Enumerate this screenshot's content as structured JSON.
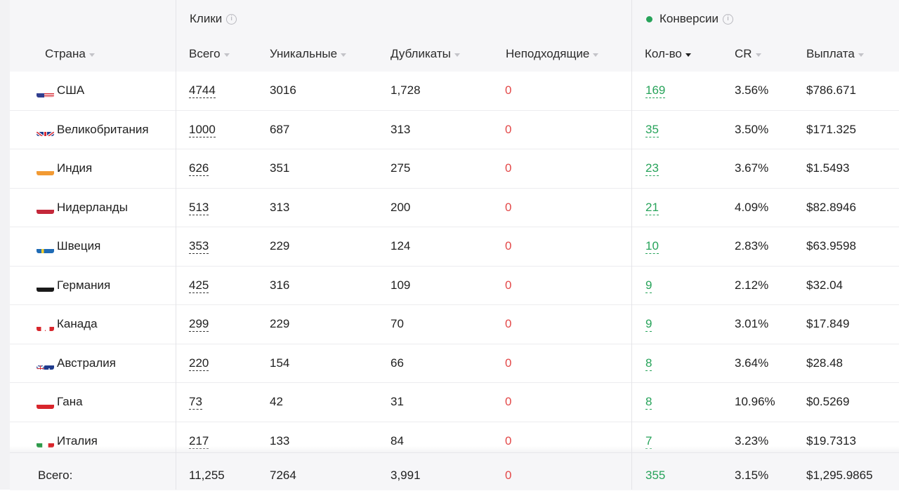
{
  "groups": {
    "clicks": "Клики",
    "conversions": "Конверсии"
  },
  "columns": {
    "country": "Страна",
    "total": "Всего",
    "unique": "Уникальные",
    "duplicates": "Дубликаты",
    "unsuitable": "Неподходящие",
    "count": "Кол-во",
    "cr": "CR",
    "payout": "Выплата"
  },
  "rows": [
    {
      "country": "США",
      "flag": "us",
      "total": "4744",
      "unique": "3016",
      "duplicates": "1,728",
      "unsuitable": "0",
      "count": "169",
      "cr": "3.56%",
      "payout": "$786.671"
    },
    {
      "country": "Великобритания",
      "flag": "gb",
      "total": "1000",
      "unique": "687",
      "duplicates": "313",
      "unsuitable": "0",
      "count": "35",
      "cr": "3.50%",
      "payout": "$171.325"
    },
    {
      "country": "Индия",
      "flag": "in",
      "total": "626",
      "unique": "351",
      "duplicates": "275",
      "unsuitable": "0",
      "count": "23",
      "cr": "3.67%",
      "payout": "$1.5493"
    },
    {
      "country": "Нидерланды",
      "flag": "nl",
      "total": "513",
      "unique": "313",
      "duplicates": "200",
      "unsuitable": "0",
      "count": "21",
      "cr": "4.09%",
      "payout": "$82.8946"
    },
    {
      "country": "Швеция",
      "flag": "se",
      "total": "353",
      "unique": "229",
      "duplicates": "124",
      "unsuitable": "0",
      "count": "10",
      "cr": "2.83%",
      "payout": "$63.9598"
    },
    {
      "country": "Германия",
      "flag": "de",
      "total": "425",
      "unique": "316",
      "duplicates": "109",
      "unsuitable": "0",
      "count": "9",
      "cr": "2.12%",
      "payout": "$32.04"
    },
    {
      "country": "Канада",
      "flag": "ca",
      "total": "299",
      "unique": "229",
      "duplicates": "70",
      "unsuitable": "0",
      "count": "9",
      "cr": "3.01%",
      "payout": "$17.849"
    },
    {
      "country": "Австралия",
      "flag": "au",
      "total": "220",
      "unique": "154",
      "duplicates": "66",
      "unsuitable": "0",
      "count": "8",
      "cr": "3.64%",
      "payout": "$28.48"
    },
    {
      "country": "Гана",
      "flag": "gh",
      "total": "73",
      "unique": "42",
      "duplicates": "31",
      "unsuitable": "0",
      "count": "8",
      "cr": "10.96%",
      "payout": "$0.5269"
    },
    {
      "country": "Италия",
      "flag": "it",
      "total": "217",
      "unique": "133",
      "duplicates": "84",
      "unsuitable": "0",
      "count": "7",
      "cr": "3.23%",
      "payout": "$19.7313"
    }
  ],
  "totals": {
    "label": "Всего:",
    "total": "11,255",
    "unique": "7264",
    "duplicates": "3,991",
    "unsuitable": "0",
    "count": "355",
    "cr": "3.15%",
    "payout": "$1,295.9865"
  },
  "colors": {
    "green": "#27a35a",
    "red": "#e34848"
  }
}
